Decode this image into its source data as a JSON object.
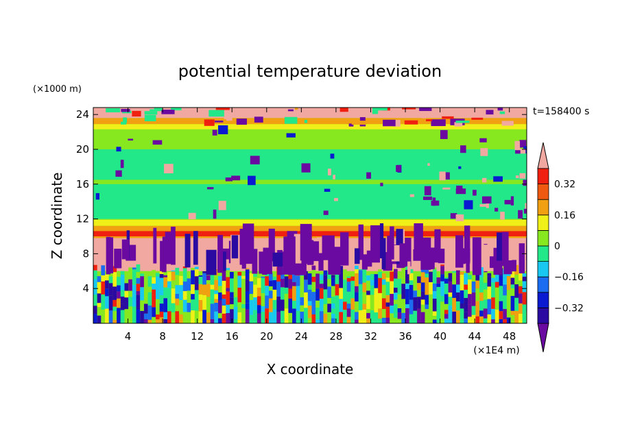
{
  "chart_data": {
    "type": "heatmap",
    "title": "potential temperature deviation",
    "xlabel": "X coordinate",
    "ylabel": "Z coordinate",
    "x_unit": "(×1E4 m)",
    "y_unit": "(×1000 m)",
    "time_label": "t=158400 s",
    "xlim": [
      0,
      50
    ],
    "ylim": [
      0,
      24.8
    ],
    "x_ticks": [
      4,
      8,
      12,
      16,
      20,
      24,
      28,
      32,
      36,
      40,
      44,
      48
    ],
    "y_ticks": [
      4,
      8,
      12,
      16,
      20,
      24
    ],
    "colorbar": {
      "tick_labels": [
        "0.32",
        "0.16",
        "0",
        "−0.16",
        "−0.32"
      ],
      "tick_values": [
        0.32,
        0.16,
        0,
        -0.16,
        -0.32
      ],
      "levels": [
        -0.4,
        -0.32,
        -0.24,
        -0.16,
        -0.08,
        0,
        0.08,
        0.16,
        0.24,
        0.32,
        0.4
      ],
      "colors": [
        "#6a0aa0",
        "#2a0aa0",
        "#0a1ad0",
        "#1b6cf0",
        "#18c8f0",
        "#22e88a",
        "#88e820",
        "#f0f018",
        "#f0a010",
        "#f05a10",
        "#f02010",
        "#f0a8a0"
      ]
    },
    "bands": [
      {
        "z": [
          0,
          6
        ],
        "pattern": "columns of alternating warm and cold cells"
      },
      {
        "z": [
          6,
          9.5
        ],
        "pattern": "purple and pink plumes"
      },
      {
        "z": [
          9.5,
          11.5
        ],
        "pattern": "orange/red layer"
      },
      {
        "z": [
          11.5,
          23
        ],
        "pattern": "green with scattered purple and pink patches"
      },
      {
        "z": [
          23,
          24.8
        ],
        "pattern": "pink, orange and purple layer"
      }
    ]
  }
}
